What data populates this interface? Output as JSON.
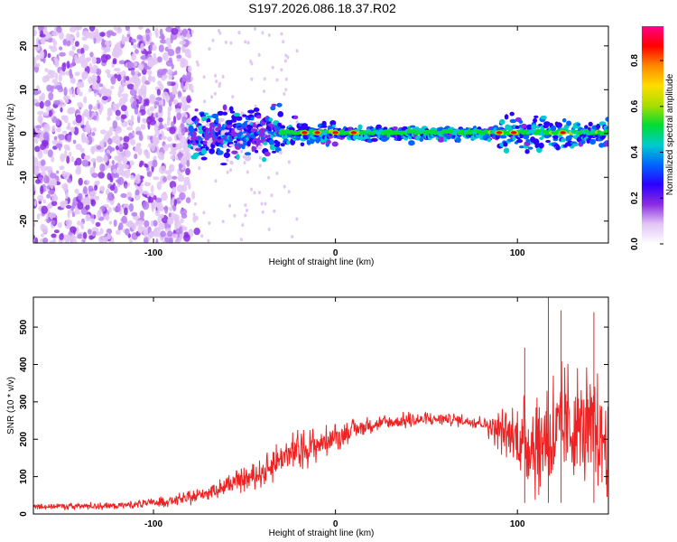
{
  "figure_title": "S197.2026.086.18.37.R02",
  "colors": {
    "noise_dot": "#8a2be2",
    "snr_line": "#ee2222",
    "frame": "#000000"
  },
  "chart_data": [
    {
      "type": "heatmap",
      "title": "S197.2026.086.18.37.R02",
      "xlabel": "Height of straight line (km)",
      "ylabel": "Frequency (Hz)",
      "xlim": [
        -166,
        150
      ],
      "ylim": [
        -25,
        24.5
      ],
      "xticks": [
        -100,
        0,
        100
      ],
      "yticks": [
        -20,
        -10,
        0,
        10,
        20
      ],
      "xtick_labels": [
        "-100",
        "0",
        "100"
      ],
      "ytick_labels": [
        "-20",
        "-10",
        "0",
        "10",
        "20"
      ],
      "signal_band": {
        "x_start": -80,
        "x_end": 150,
        "center_hz": 0,
        "half_width_hz": 2
      },
      "noise_region": {
        "x_start": -166,
        "x_end": -80,
        "f_min": -25,
        "f_max": 24.5
      },
      "strong_peaks_x": [
        -17,
        -10,
        0,
        10,
        90,
        98,
        125
      ],
      "colorbar": {
        "label": "Normalized spectral amplitude",
        "range": [
          0.0,
          0.95
        ],
        "ticks": [
          0.0,
          0.2,
          0.4,
          0.6,
          0.8
        ],
        "tick_labels": [
          "0.0",
          "0.2",
          "0.4",
          "0.6",
          "0.8"
        ],
        "colormap": [
          "#ffffff",
          "#e2c6f5",
          "#8a2be2",
          "#2a00ff",
          "#0066ff",
          "#00cccc",
          "#00dd33",
          "#aadd00",
          "#ffdd00",
          "#ff8800",
          "#ff0000",
          "#ff0088"
        ]
      }
    },
    {
      "type": "line",
      "xlabel": "Height of straight line (km)",
      "ylabel": "SNR (10 * v/v)",
      "xlim": [
        -166,
        150
      ],
      "ylim": [
        0,
        580
      ],
      "xticks": [
        -100,
        0,
        100
      ],
      "yticks": [
        0,
        100,
        200,
        300,
        400,
        500
      ],
      "xtick_labels": [
        "-100",
        "0",
        "100"
      ],
      "ytick_labels": [
        "0",
        "100",
        "200",
        "300",
        "400",
        "500"
      ],
      "envelope": {
        "x": [
          -166,
          -120,
          -100,
          -80,
          -60,
          -40,
          -30,
          -20,
          -10,
          0,
          10,
          20,
          30,
          40,
          60,
          80,
          90,
          100,
          110,
          120,
          130,
          140,
          150
        ],
        "mean": [
          20,
          22,
          30,
          42,
          75,
          110,
          150,
          170,
          185,
          205,
          225,
          240,
          245,
          250,
          255,
          245,
          225,
          200,
          190,
          210,
          230,
          220,
          200
        ],
        "spread": [
          10,
          12,
          15,
          20,
          30,
          40,
          60,
          60,
          50,
          40,
          30,
          25,
          25,
          25,
          20,
          20,
          60,
          110,
          160,
          200,
          190,
          180,
          160
        ]
      },
      "peak_values": [
        {
          "x": 117,
          "y": 580
        },
        {
          "x": 124,
          "y": 545
        },
        {
          "x": 142,
          "y": 540
        },
        {
          "x": 104,
          "y": 445
        }
      ]
    }
  ]
}
